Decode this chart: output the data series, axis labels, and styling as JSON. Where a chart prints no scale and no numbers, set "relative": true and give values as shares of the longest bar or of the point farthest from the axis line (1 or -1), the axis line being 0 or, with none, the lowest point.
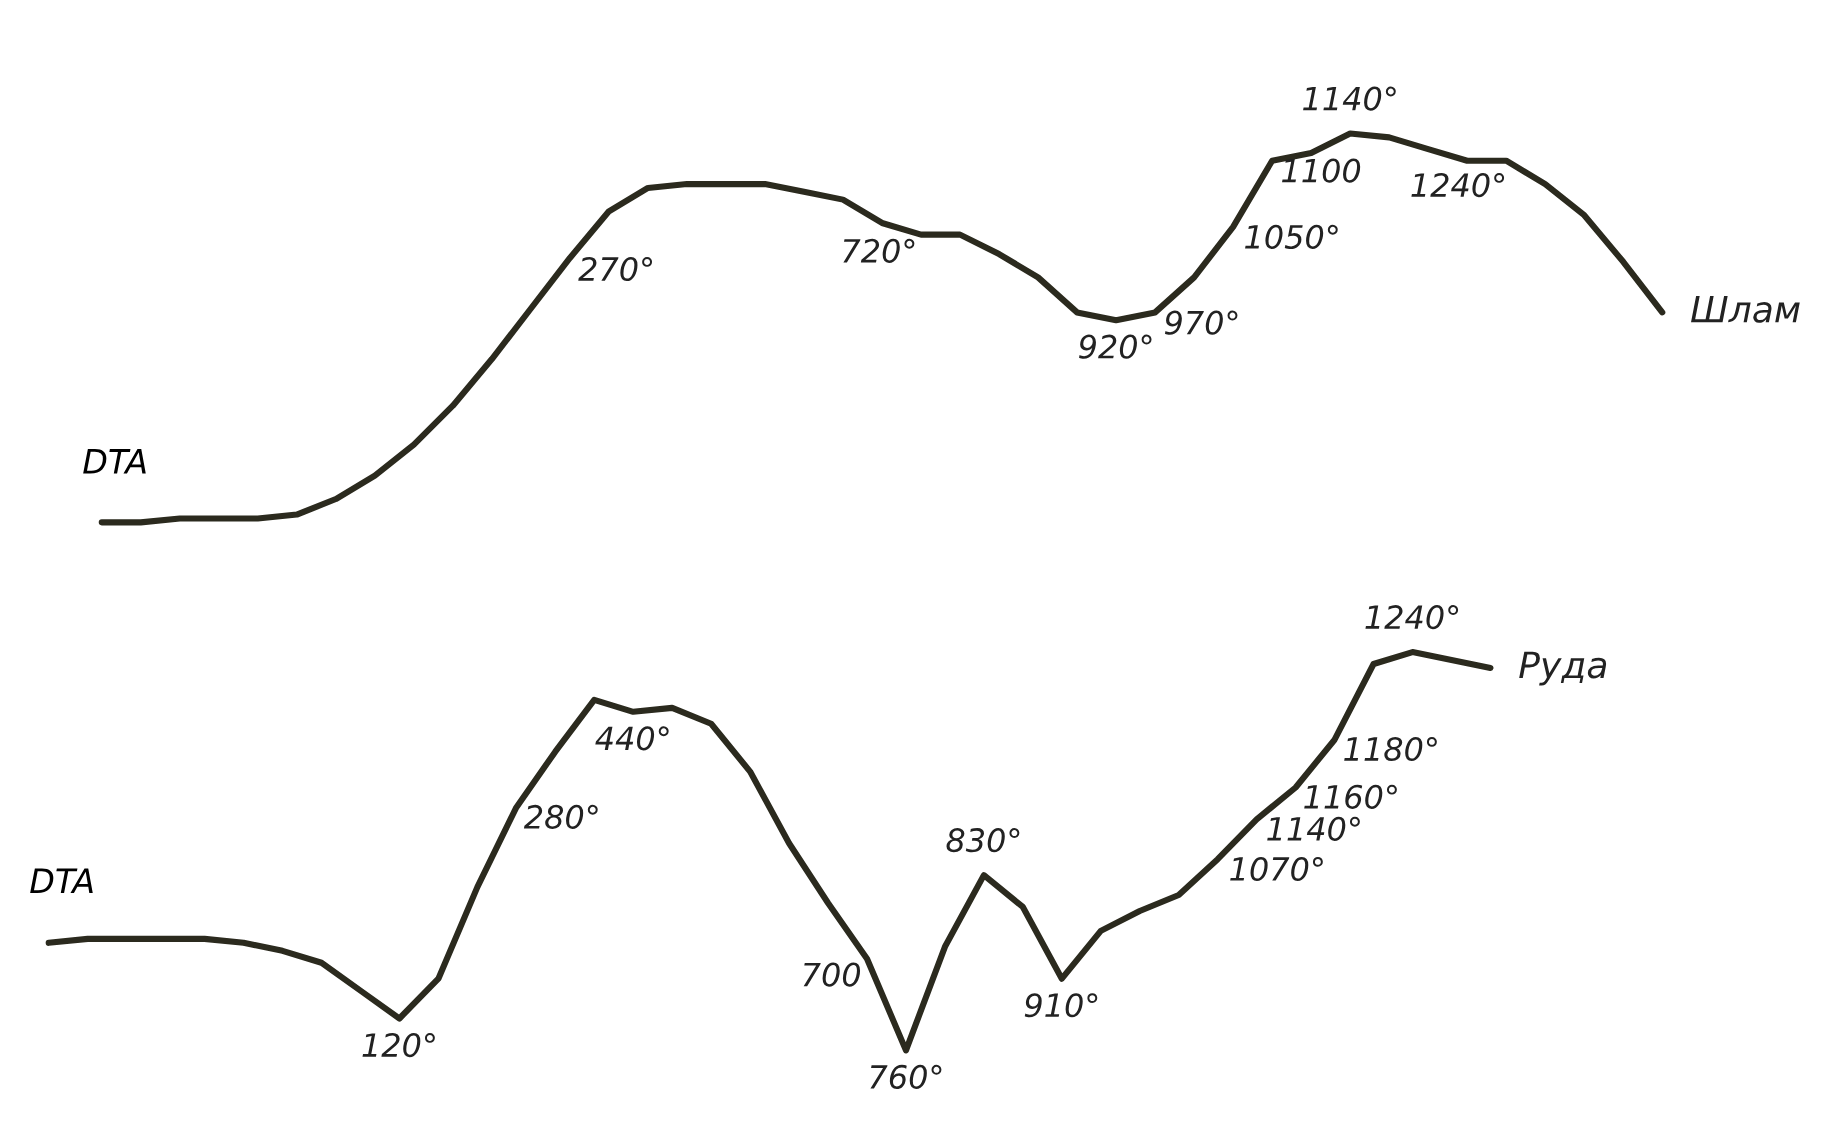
{
  "chart_data": [
    {
      "type": "line",
      "relative": true,
      "ylabel": "DTA",
      "tick_labels": false,
      "categories": [
        null,
        null,
        null,
        null,
        null,
        null,
        null,
        null,
        null,
        null,
        null,
        null,
        null,
        null,
        null,
        null,
        null,
        null,
        null,
        null,
        null,
        null,
        null,
        null,
        null,
        null,
        null,
        null,
        null,
        null,
        null,
        null,
        null,
        null,
        null,
        null,
        null,
        null,
        null,
        null,
        null
      ],
      "annotations": [
        "270°",
        "720°",
        {
          "text": "920°",
          "y": 0.52
        },
        "970°",
        "1050°",
        {
          "text": "1100",
          "y": 0.93
        },
        {
          "text": "1140°",
          "y": 1
        },
        "1240°"
      ],
      "series": [
        {
          "name": "Шлам",
          "color": "#2b2a1e",
          "values": [
            0,
            0,
            0.01,
            0.01,
            0.01,
            0.02,
            0.06,
            0.12,
            0.2,
            0.3,
            0.42,
            0.55,
            0.68,
            0.8,
            0.86,
            0.87,
            0.87,
            0.87,
            0.85,
            0.83,
            0.77,
            0.74,
            0.74,
            0.69,
            0.63,
            0.54,
            0.52,
            0.54,
            0.63,
            0.76,
            0.93,
            0.95,
            1,
            0.99,
            0.96,
            0.93,
            0.93,
            0.87,
            0.79,
            0.67,
            0.54
          ]
        }
      ]
    },
    {
      "type": "line",
      "relative": true,
      "ylabel": "DTA",
      "tick_labels": false,
      "categories": [
        null,
        null,
        null,
        null,
        null,
        null,
        null,
        null,
        null,
        null,
        null,
        null,
        null,
        null,
        null,
        null,
        null,
        null,
        null,
        null,
        null,
        null,
        null,
        null,
        null,
        null,
        null,
        null,
        null,
        null,
        null,
        null,
        null,
        null,
        null,
        null,
        null,
        null
      ],
      "annotations": [
        {
          "text": "120°",
          "y": 0.08
        },
        "280°",
        {
          "text": "440°",
          "y": 0.85
        },
        "700",
        {
          "text": "760°",
          "y": 0
        },
        {
          "text": "830°",
          "y": 0.44
        },
        {
          "text": "910°",
          "y": 0.18
        },
        "1070°",
        "1140°",
        "1160°",
        "1180°",
        {
          "text": "1240°",
          "y": 1
        }
      ],
      "series": [
        {
          "name": "Руда",
          "color": "#2b2a1e",
          "values": [
            0.27,
            0.28,
            0.28,
            0.28,
            0.28,
            0.27,
            0.25,
            0.22,
            0.15,
            0.08,
            0.18,
            0.41,
            0.61,
            0.75,
            0.88,
            0.85,
            0.86,
            0.82,
            0.7,
            0.52,
            0.37,
            0.23,
            0,
            0.26,
            0.44,
            0.36,
            0.18,
            0.3,
            0.35,
            0.39,
            0.48,
            0.58,
            0.66,
            0.78,
            0.97,
            1,
            0.98,
            0.96
          ]
        }
      ]
    }
  ]
}
